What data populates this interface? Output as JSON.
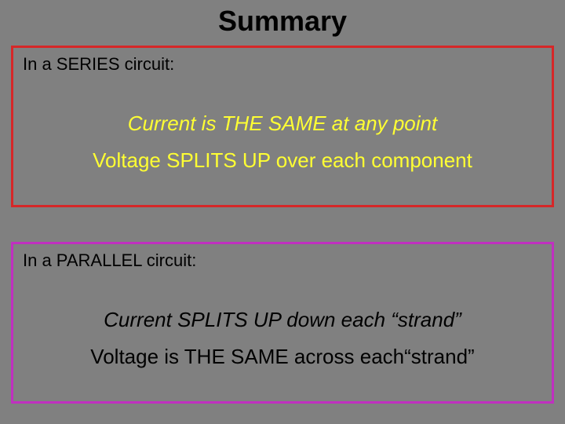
{
  "title": "Summary",
  "title_color": "#000000",
  "title_fontsize": 36,
  "background_color": "#808080",
  "series_box": {
    "border_color": "#d62728",
    "border_width": 3,
    "heading": "In a SERIES circuit:",
    "heading_color": "#000000",
    "heading_fontsize": 22,
    "line1": "Current is THE SAME at any point",
    "line1_italic": true,
    "line1_color": "#ffff33",
    "line2": "Voltage SPLITS UP over each component",
    "line2_italic": false,
    "line2_color": "#ffff33",
    "line_fontsize": 26
  },
  "parallel_box": {
    "border_color": "#c030c0",
    "border_width": 3,
    "heading": "In a PARALLEL circuit:",
    "heading_color": "#000000",
    "heading_fontsize": 22,
    "line1": "Current SPLITS UP down each “strand”",
    "line1_italic": true,
    "line1_color": "#000000",
    "line2": "Voltage is THE SAME across each“strand”",
    "line2_italic": false,
    "line2_color": "#000000",
    "line_fontsize": 26
  },
  "font_family": "Comic Sans MS"
}
